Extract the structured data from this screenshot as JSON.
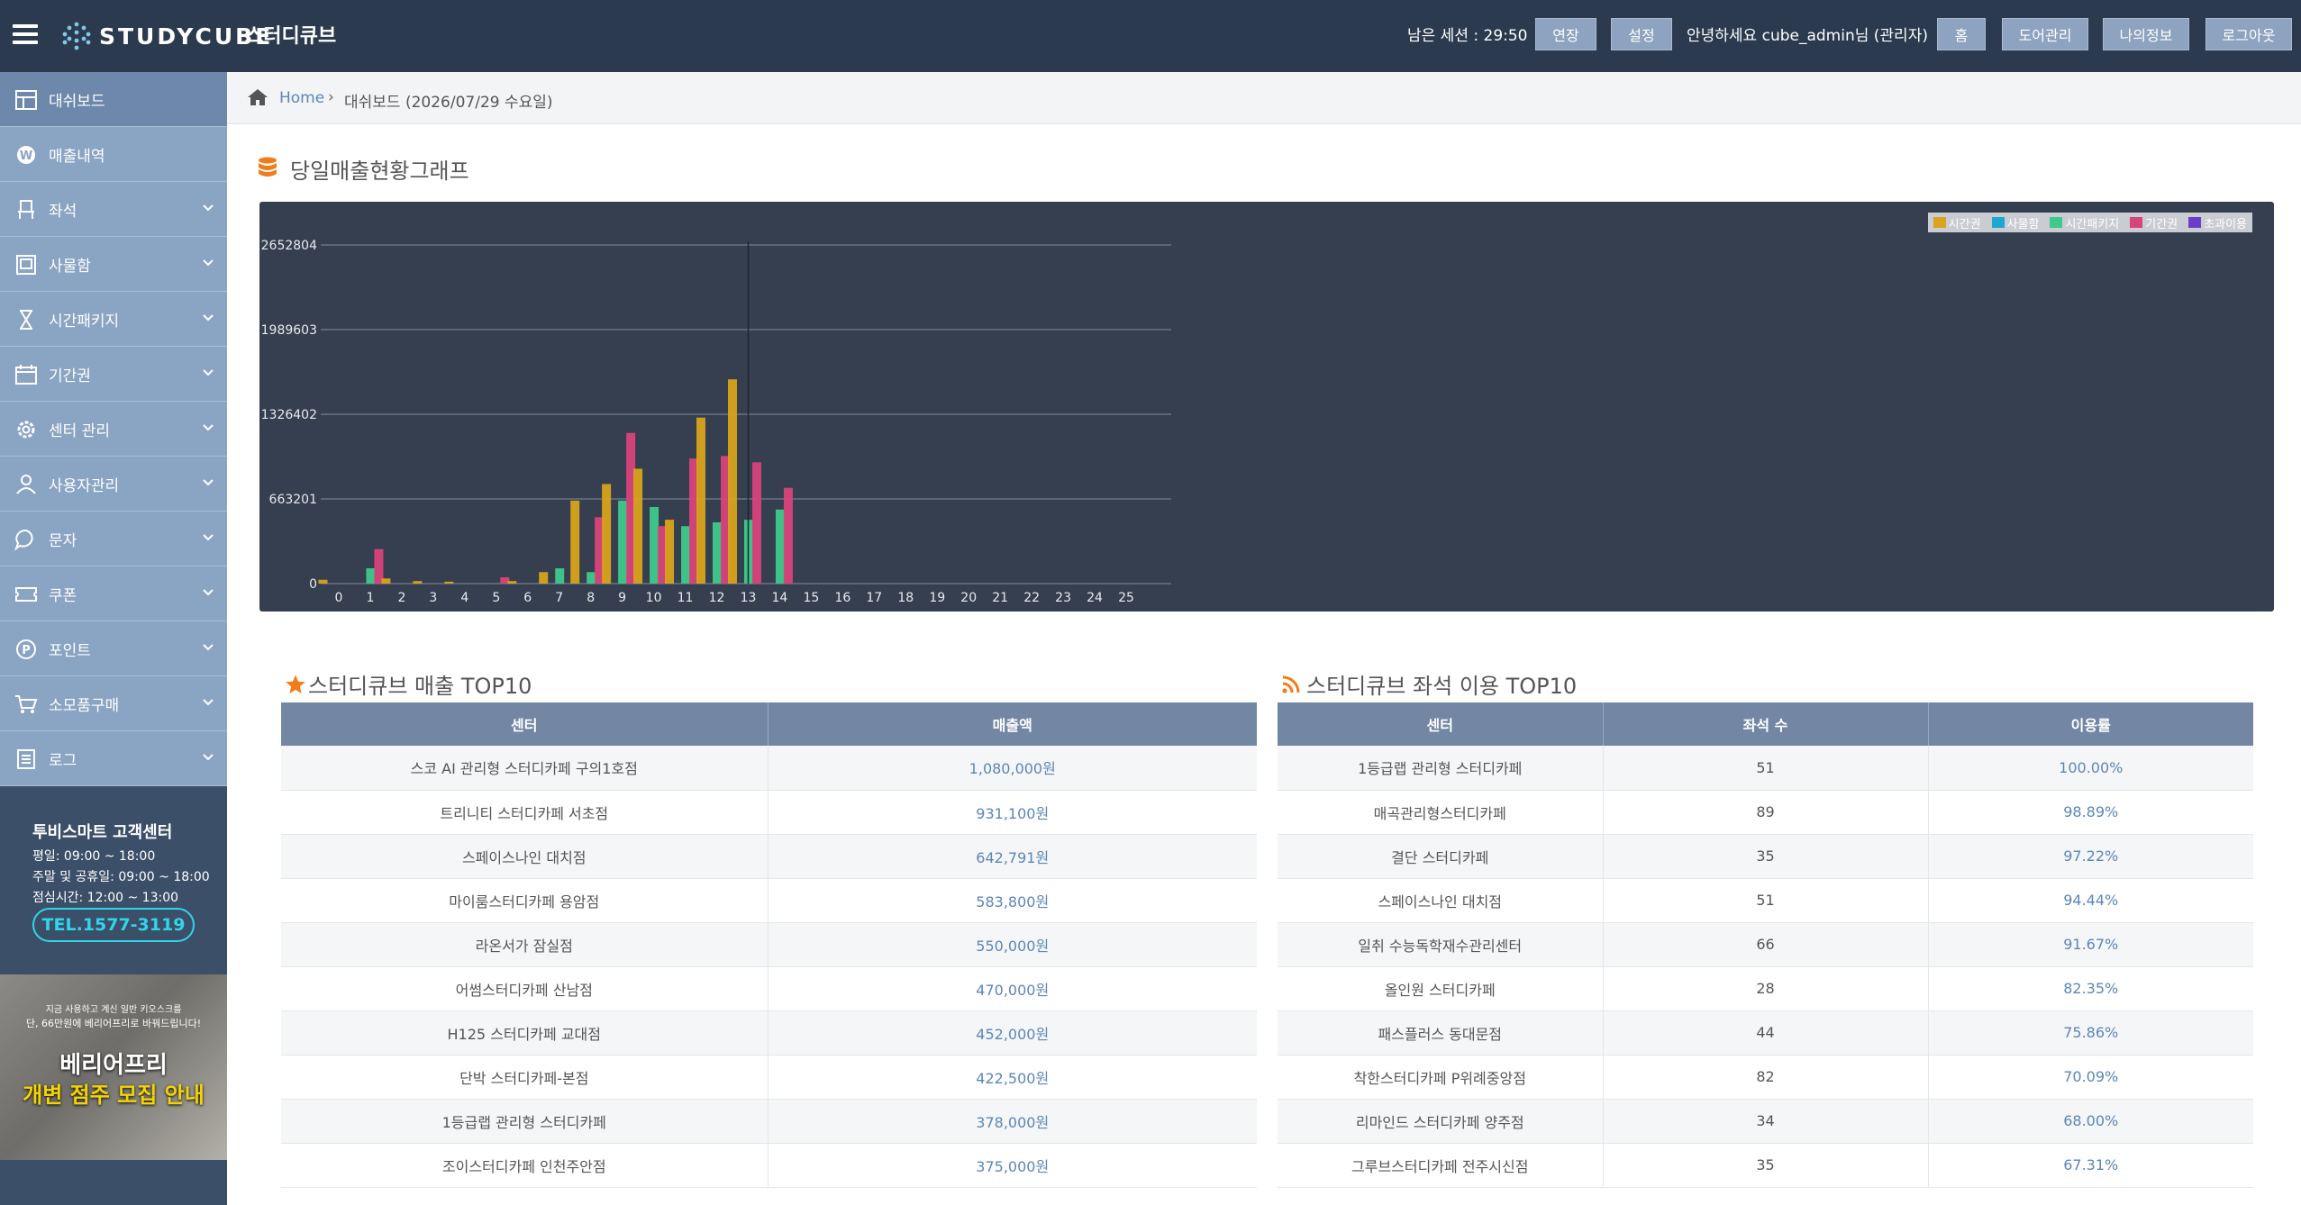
{
  "header": {
    "logo_text": "STUDYCUBE",
    "app_name": "스터디큐브",
    "session": "남은 세션 : 29:50",
    "extend_label": "연장",
    "settings_label": "설정",
    "greeting": "안녕하세요 cube_admin님 (관리자)",
    "home_label": "홈",
    "door_label": "도어관리",
    "myinfo_label": "나의정보",
    "logout_label": "로그아웃"
  },
  "sidebar": {
    "items": [
      {
        "label": "대쉬보드",
        "icon": "dashboard-icon",
        "expandable": false,
        "active": true
      },
      {
        "label": "매출내역",
        "icon": "won-icon",
        "expandable": false,
        "active": false
      },
      {
        "label": "좌석",
        "icon": "seat-icon",
        "expandable": true,
        "active": false
      },
      {
        "label": "사물함",
        "icon": "locker-icon",
        "expandable": true,
        "active": false
      },
      {
        "label": "시간패키지",
        "icon": "hourglass-icon",
        "expandable": true,
        "active": false
      },
      {
        "label": "기간권",
        "icon": "calendar-icon",
        "expandable": true,
        "active": false
      },
      {
        "label": "센터 관리",
        "icon": "gear-icon",
        "expandable": true,
        "active": false
      },
      {
        "label": "사용자관리",
        "icon": "user-icon",
        "expandable": true,
        "active": false
      },
      {
        "label": "문자",
        "icon": "chat-icon",
        "expandable": true,
        "active": false
      },
      {
        "label": "쿠폰",
        "icon": "ticket-icon",
        "expandable": true,
        "active": false
      },
      {
        "label": "포인트",
        "icon": "point-icon",
        "expandable": true,
        "active": false
      },
      {
        "label": "소모품구매",
        "icon": "cart-icon",
        "expandable": true,
        "active": false
      },
      {
        "label": "로그",
        "icon": "log-icon",
        "expandable": true,
        "active": false
      }
    ],
    "support": {
      "title": "투비스마트 고객센터",
      "weekday": "평일: 09:00 ~ 18:00",
      "weekend": "주말 및 공휴일: 09:00 ~ 18:00",
      "lunch": "점심시간: 12:00 ~ 13:00",
      "tel": "TEL.1577-3119"
    },
    "banner": {
      "line1": "지금 사용하고 계신 일반 키오스크를",
      "line2": "단, 66만원에 베리어프리로 바꿔드립니다!",
      "title": "베리어프리",
      "subtitle": "개변 점주 모집 안내"
    }
  },
  "breadcrumb": {
    "home": "Home",
    "separator": "›",
    "current": "대쉬보드 (2026/07/29 수요일)"
  },
  "chart_section": {
    "title": "당일매출현황그래프"
  },
  "chart_data": {
    "type": "bar",
    "x": [
      0,
      1,
      2,
      3,
      4,
      5,
      6,
      7,
      8,
      9,
      10,
      11,
      12,
      13,
      14,
      15,
      16,
      17,
      18,
      19,
      20,
      21,
      22,
      23,
      24,
      25
    ],
    "yticks": [
      0,
      663201,
      1326402,
      1989603,
      2652804
    ],
    "ylim": [
      0,
      2652804
    ],
    "grid": true,
    "legend_position": "top-right",
    "series": [
      {
        "name": "시간권",
        "color": "#d9a31a",
        "values": [
          30000,
          0,
          40000,
          20000,
          15000,
          0,
          20000,
          90000,
          650000,
          780000,
          900000,
          500000,
          1300000,
          1600000,
          0,
          0,
          0,
          0,
          0,
          0,
          0,
          0,
          0,
          0,
          0,
          0
        ]
      },
      {
        "name": "사물함",
        "color": "#1ea7cf",
        "values": [
          0,
          0,
          0,
          0,
          0,
          0,
          0,
          0,
          0,
          0,
          0,
          0,
          0,
          0,
          0,
          0,
          0,
          0,
          0,
          0,
          0,
          0,
          0,
          0,
          0,
          0
        ]
      },
      {
        "name": "시간패키지",
        "color": "#3fc98a",
        "values": [
          0,
          120000,
          0,
          0,
          0,
          0,
          0,
          120000,
          90000,
          650000,
          600000,
          450000,
          480000,
          500000,
          580000,
          0,
          0,
          0,
          0,
          0,
          0,
          0,
          0,
          0,
          0,
          0
        ]
      },
      {
        "name": "기간권",
        "color": "#d8437a",
        "values": [
          0,
          270000,
          0,
          0,
          0,
          50000,
          0,
          0,
          520000,
          1180000,
          450000,
          980000,
          1000000,
          950000,
          750000,
          0,
          0,
          0,
          0,
          0,
          0,
          0,
          0,
          0,
          0,
          0
        ]
      },
      {
        "name": "초과이용",
        "color": "#6a3fc8",
        "values": [
          0,
          0,
          0,
          0,
          0,
          0,
          0,
          0,
          0,
          0,
          0,
          0,
          0,
          0,
          0,
          0,
          0,
          0,
          0,
          0,
          0,
          0,
          0,
          0,
          0,
          0
        ]
      }
    ]
  },
  "sales_top10": {
    "title": "스터디큐브 매출 TOP10",
    "headers": [
      "센터",
      "매출액"
    ],
    "rows": [
      [
        "스코 AI 관리형 스터디카페 구의1호점",
        "1,080,000원"
      ],
      [
        "트리니티 스터디카페 서초점",
        "931,100원"
      ],
      [
        "스페이스나인 대치점",
        "642,791원"
      ],
      [
        "마이룸스터디카페 용암점",
        "583,800원"
      ],
      [
        "라온서가 잠실점",
        "550,000원"
      ],
      [
        "어썸스터디카페 산남점",
        "470,000원"
      ],
      [
        "H125 스터디카페 교대점",
        "452,000원"
      ],
      [
        "단박 스터디카페-본점",
        "422,500원"
      ],
      [
        "1등급랩 관리형 스터디카페",
        "378,000원"
      ],
      [
        "조이스터디카페 인천주안점",
        "375,000원"
      ]
    ]
  },
  "seat_top10": {
    "title": "스터디큐브 좌석 이용 TOP10",
    "headers": [
      "센터",
      "좌석 수",
      "이용률"
    ],
    "rows": [
      [
        "1등급랩 관리형 스터디카페",
        "51",
        "100.00%"
      ],
      [
        "매곡관리형스터디카페",
        "89",
        "98.89%"
      ],
      [
        "결단 스터디카페",
        "35",
        "97.22%"
      ],
      [
        "스페이스나인 대치점",
        "51",
        "94.44%"
      ],
      [
        "일취 수능독학재수관리센터",
        "66",
        "91.67%"
      ],
      [
        "올인원 스터디카페",
        "28",
        "82.35%"
      ],
      [
        "패스플러스 동대문점",
        "44",
        "75.86%"
      ],
      [
        "착한스터디카페 P위례중앙점",
        "82",
        "70.09%"
      ],
      [
        "리마인드 스터디카페 양주점",
        "34",
        "68.00%"
      ],
      [
        "그루브스터디카페 전주시신점",
        "35",
        "67.31%"
      ]
    ]
  }
}
